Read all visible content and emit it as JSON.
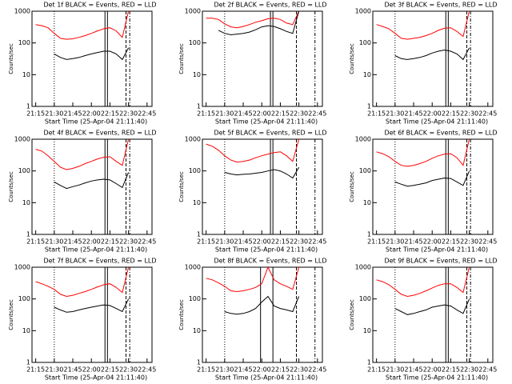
{
  "chart_data": [
    {
      "type": "line",
      "title": "Det 1f BLACK = Events, RED = LLD",
      "xlabel": "Start Time (25-Apr-04 21:11:40)",
      "ylabel": "Counts/sec",
      "log": true,
      "x": [
        "21:15",
        "21:20",
        "21:25",
        "21:30",
        "21:35",
        "21:40",
        "21:45",
        "21:50",
        "21:55",
        "22:00",
        "22:05",
        "22:10",
        "22:15",
        "22:20",
        "22:25",
        "22:30"
      ],
      "xlim": [
        "21:12",
        "22:49"
      ],
      "xticks": [
        "21:15",
        "21:30",
        "21:45",
        "22:00",
        "22:15",
        "22:30",
        "22:45"
      ],
      "ylim": [
        1,
        1000
      ],
      "yticks": [
        1,
        10,
        100,
        1000
      ],
      "vlines": [
        {
          "x": "21:30",
          "style": "dotted"
        },
        {
          "x": "22:11",
          "style": "solid"
        },
        {
          "x": "22:13",
          "style": "solid"
        },
        {
          "x": "22:28",
          "style": "dashed"
        },
        {
          "x": "22:31",
          "style": "dashdot"
        }
      ],
      "series": [
        {
          "color": "#ff0000",
          "values": [
            380,
            350,
            300,
            200,
            140,
            130,
            135,
            150,
            170,
            200,
            240,
            280,
            300,
            240,
            150,
            1000
          ]
        },
        {
          "color": "#000000",
          "values": [
            null,
            null,
            null,
            45,
            35,
            30,
            32,
            35,
            40,
            45,
            50,
            55,
            55,
            45,
            30,
            70
          ]
        }
      ]
    },
    {
      "type": "line",
      "title": "Det 2f BLACK = Events, RED = LLD",
      "xlabel": "Start Time (25-Apr-04 21:11:40)",
      "ylabel": "Counts/sec",
      "log": true,
      "x": [
        "21:15",
        "21:20",
        "21:25",
        "21:30",
        "21:35",
        "21:40",
        "21:45",
        "21:50",
        "21:55",
        "22:00",
        "22:05",
        "22:10",
        "22:15",
        "22:20",
        "22:25",
        "22:30"
      ],
      "xlim": [
        "21:12",
        "22:49"
      ],
      "xticks": [
        "21:15",
        "21:30",
        "21:45",
        "22:00",
        "22:15",
        "22:30",
        "22:45"
      ],
      "ylim": [
        1,
        1000
      ],
      "yticks": [
        1,
        10,
        100,
        1000
      ],
      "vlines": [
        {
          "x": "21:30",
          "style": "dotted"
        },
        {
          "x": "22:07",
          "style": "solid"
        },
        {
          "x": "22:09",
          "style": "solid"
        },
        {
          "x": "22:28",
          "style": "dashed"
        },
        {
          "x": "22:43",
          "style": "dashdot"
        }
      ],
      "series": [
        {
          "color": "#ff0000",
          "values": [
            600,
            600,
            550,
            400,
            320,
            300,
            330,
            380,
            450,
            500,
            580,
            600,
            550,
            420,
            380,
            1000
          ]
        },
        {
          "color": "#000000",
          "values": [
            null,
            null,
            250,
            200,
            180,
            190,
            200,
            220,
            260,
            320,
            350,
            330,
            280,
            230,
            200,
            1000
          ]
        }
      ]
    },
    {
      "type": "line",
      "title": "Det 3f BLACK = Events, RED = LLD",
      "xlabel": "Start Time (25-Apr-04 21:11:40)",
      "ylabel": "Counts/sec",
      "log": true,
      "x": [
        "21:15",
        "21:20",
        "21:25",
        "21:30",
        "21:35",
        "21:40",
        "21:45",
        "21:50",
        "21:55",
        "22:00",
        "22:05",
        "22:10",
        "22:15",
        "22:20",
        "22:25",
        "22:30"
      ],
      "xlim": [
        "21:12",
        "22:49"
      ],
      "xticks": [
        "21:15",
        "21:30",
        "21:45",
        "22:00",
        "22:15",
        "22:30",
        "22:45"
      ],
      "ylim": [
        1,
        1000
      ],
      "yticks": [
        1,
        10,
        100,
        1000
      ],
      "vlines": [
        {
          "x": "21:30",
          "style": "dotted"
        },
        {
          "x": "22:11",
          "style": "solid"
        },
        {
          "x": "22:13",
          "style": "solid"
        },
        {
          "x": "22:28",
          "style": "dashed"
        },
        {
          "x": "22:31",
          "style": "dashdot"
        }
      ],
      "series": [
        {
          "color": "#ff0000",
          "values": [
            380,
            330,
            280,
            200,
            140,
            130,
            140,
            150,
            170,
            200,
            250,
            290,
            300,
            230,
            160,
            1000
          ]
        },
        {
          "color": "#000000",
          "values": [
            null,
            null,
            null,
            40,
            32,
            30,
            32,
            35,
            40,
            48,
            55,
            60,
            55,
            45,
            30,
            70
          ]
        }
      ]
    },
    {
      "type": "line",
      "title": "Det 4f BLACK = Events, RED = LLD",
      "xlabel": "Start Time (25-Apr-04 21:11:40)",
      "ylabel": "Counts/sec",
      "log": true,
      "x": [
        "21:15",
        "21:20",
        "21:25",
        "21:30",
        "21:35",
        "21:40",
        "21:45",
        "21:50",
        "21:55",
        "22:00",
        "22:05",
        "22:10",
        "22:15",
        "22:20",
        "22:25",
        "22:30"
      ],
      "xlim": [
        "21:12",
        "22:49"
      ],
      "xticks": [
        "21:15",
        "21:30",
        "21:45",
        "22:00",
        "22:15",
        "22:30",
        "22:45"
      ],
      "ylim": [
        1,
        1000
      ],
      "yticks": [
        1,
        10,
        100,
        1000
      ],
      "vlines": [
        {
          "x": "21:30",
          "style": "dotted"
        },
        {
          "x": "22:11",
          "style": "solid"
        },
        {
          "x": "22:13",
          "style": "solid"
        },
        {
          "x": "22:28",
          "style": "dashed"
        },
        {
          "x": "22:31",
          "style": "dashdot"
        }
      ],
      "series": [
        {
          "color": "#ff0000",
          "values": [
            480,
            420,
            300,
            200,
            130,
            110,
            120,
            140,
            170,
            200,
            240,
            270,
            280,
            200,
            150,
            1000
          ]
        },
        {
          "color": "#000000",
          "values": [
            null,
            null,
            null,
            45,
            35,
            28,
            32,
            36,
            42,
            48,
            52,
            55,
            52,
            40,
            30,
            90
          ]
        }
      ]
    },
    {
      "type": "line",
      "title": "Det 5f BLACK = Events, RED = LLD",
      "xlabel": "Start Time (25-Apr-04 21:11:40)",
      "ylabel": "Counts/sec",
      "log": true,
      "x": [
        "21:15",
        "21:20",
        "21:25",
        "21:30",
        "21:35",
        "21:40",
        "21:45",
        "21:50",
        "21:55",
        "22:00",
        "22:05",
        "22:10",
        "22:15",
        "22:20",
        "22:25",
        "22:30"
      ],
      "xlim": [
        "21:12",
        "22:49"
      ],
      "xticks": [
        "21:15",
        "21:30",
        "21:45",
        "22:00",
        "22:15",
        "22:30",
        "22:45"
      ],
      "ylim": [
        1,
        1000
      ],
      "yticks": [
        1,
        10,
        100,
        1000
      ],
      "vlines": [
        {
          "x": "21:30",
          "style": "dotted"
        },
        {
          "x": "22:07",
          "style": "solid"
        },
        {
          "x": "22:09",
          "style": "solid"
        },
        {
          "x": "22:28",
          "style": "dashed"
        },
        {
          "x": "22:43",
          "style": "dashdot"
        }
      ],
      "series": [
        {
          "color": "#ff0000",
          "values": [
            700,
            600,
            450,
            300,
            220,
            190,
            200,
            220,
            260,
            300,
            340,
            380,
            400,
            300,
            200,
            1000
          ]
        },
        {
          "color": "#000000",
          "values": [
            null,
            null,
            null,
            90,
            80,
            75,
            78,
            80,
            85,
            90,
            100,
            110,
            100,
            80,
            60,
            130
          ]
        }
      ]
    },
    {
      "type": "line",
      "title": "Det 6f BLACK = Events, RED = LLD",
      "xlabel": "Start Time (25-Apr-04 21:11:40)",
      "ylabel": "Counts/sec",
      "log": true,
      "x": [
        "21:15",
        "21:20",
        "21:25",
        "21:30",
        "21:35",
        "21:40",
        "21:45",
        "21:50",
        "21:55",
        "22:00",
        "22:05",
        "22:10",
        "22:15",
        "22:20",
        "22:25",
        "22:30"
      ],
      "xlim": [
        "21:12",
        "22:49"
      ],
      "xticks": [
        "21:15",
        "21:30",
        "21:45",
        "22:00",
        "22:15",
        "22:30",
        "22:45"
      ],
      "ylim": [
        1,
        1000
      ],
      "yticks": [
        1,
        10,
        100,
        1000
      ],
      "vlines": [
        {
          "x": "21:30",
          "style": "dotted"
        },
        {
          "x": "22:11",
          "style": "solid"
        },
        {
          "x": "22:13",
          "style": "solid"
        },
        {
          "x": "22:28",
          "style": "dashed"
        },
        {
          "x": "22:31",
          "style": "dashdot"
        }
      ],
      "series": [
        {
          "color": "#ff0000",
          "values": [
            400,
            350,
            280,
            200,
            150,
            140,
            150,
            170,
            200,
            250,
            300,
            340,
            350,
            260,
            150,
            1000
          ]
        },
        {
          "color": "#000000",
          "values": [
            null,
            null,
            null,
            45,
            38,
            33,
            35,
            38,
            42,
            50,
            55,
            60,
            58,
            45,
            35,
            100
          ]
        }
      ]
    },
    {
      "type": "line",
      "title": "Det 7f BLACK = Events, RED = LLD",
      "xlabel": "Start Time (25-Apr-04 21:11:40)",
      "ylabel": "Counts/sec",
      "log": true,
      "x": [
        "21:15",
        "21:20",
        "21:25",
        "21:30",
        "21:35",
        "21:40",
        "21:45",
        "21:50",
        "21:55",
        "22:00",
        "22:05",
        "22:10",
        "22:15",
        "22:20",
        "22:25",
        "22:30"
      ],
      "xlim": [
        "21:12",
        "22:49"
      ],
      "xticks": [
        "21:15",
        "21:30",
        "21:45",
        "22:00",
        "22:15",
        "22:30",
        "22:45"
      ],
      "ylim": [
        1,
        1000
      ],
      "yticks": [
        1,
        10,
        100,
        1000
      ],
      "vlines": [
        {
          "x": "21:30",
          "style": "dotted"
        },
        {
          "x": "22:11",
          "style": "solid"
        },
        {
          "x": "22:13",
          "style": "solid"
        },
        {
          "x": "22:28",
          "style": "dashed"
        },
        {
          "x": "22:31",
          "style": "dashdot"
        }
      ],
      "series": [
        {
          "color": "#ff0000",
          "values": [
            350,
            300,
            250,
            200,
            140,
            120,
            130,
            150,
            170,
            200,
            240,
            280,
            300,
            230,
            160,
            1000
          ]
        },
        {
          "color": "#000000",
          "values": [
            null,
            null,
            null,
            55,
            45,
            38,
            40,
            45,
            50,
            55,
            60,
            65,
            62,
            50,
            40,
            100
          ]
        }
      ]
    },
    {
      "type": "line",
      "title": "Det 8f BLACK = Events, RED = LLD",
      "xlabel": "Start Time (25-Apr-04 21:11:40)",
      "ylabel": "Counts/sec",
      "log": true,
      "x": [
        "21:15",
        "21:20",
        "21:25",
        "21:30",
        "21:35",
        "21:40",
        "21:45",
        "21:50",
        "21:55",
        "22:00",
        "22:05",
        "22:10",
        "22:15",
        "22:20",
        "22:25",
        "22:30"
      ],
      "xlim": [
        "21:12",
        "22:49"
      ],
      "xticks": [
        "21:15",
        "21:30",
        "21:45",
        "22:00",
        "22:15",
        "22:30",
        "22:45"
      ],
      "ylim": [
        1,
        1000
      ],
      "yticks": [
        1,
        10,
        100,
        1000
      ],
      "vlines": [
        {
          "x": "21:30",
          "style": "dotted"
        },
        {
          "x": "21:59",
          "style": "solid"
        },
        {
          "x": "22:09",
          "style": "solid"
        },
        {
          "x": "22:28",
          "style": "dashed"
        },
        {
          "x": "22:43",
          "style": "dashdot"
        }
      ],
      "series": [
        {
          "color": "#ff0000",
          "values": [
            450,
            400,
            320,
            250,
            180,
            170,
            180,
            200,
            230,
            300,
            1000,
            400,
            300,
            250,
            200,
            1000
          ]
        },
        {
          "color": "#000000",
          "values": [
            null,
            null,
            null,
            40,
            35,
            33,
            35,
            40,
            50,
            80,
            120,
            60,
            50,
            45,
            40,
            120
          ]
        }
      ]
    },
    {
      "type": "line",
      "title": "Det 9f BLACK = Events, RED = LLD",
      "xlabel": "Start Time (25-Apr-04 21:11:40)",
      "ylabel": "Counts/sec",
      "log": true,
      "x": [
        "21:15",
        "21:20",
        "21:25",
        "21:30",
        "21:35",
        "21:40",
        "21:45",
        "21:50",
        "21:55",
        "22:00",
        "22:05",
        "22:10",
        "22:15",
        "22:20",
        "22:25",
        "22:30"
      ],
      "xlim": [
        "21:12",
        "22:49"
      ],
      "xticks": [
        "21:15",
        "21:30",
        "21:45",
        "22:00",
        "22:15",
        "22:30",
        "22:45"
      ],
      "ylim": [
        1,
        1000
      ],
      "yticks": [
        1,
        10,
        100,
        1000
      ],
      "vlines": [
        {
          "x": "21:30",
          "style": "dotted"
        },
        {
          "x": "22:11",
          "style": "solid"
        },
        {
          "x": "22:13",
          "style": "solid"
        },
        {
          "x": "22:28",
          "style": "dashed"
        },
        {
          "x": "22:31",
          "style": "dashdot"
        }
      ],
      "series": [
        {
          "color": "#ff0000",
          "values": [
            400,
            350,
            280,
            200,
            140,
            120,
            130,
            150,
            180,
            220,
            270,
            300,
            300,
            230,
            160,
            1000
          ]
        },
        {
          "color": "#000000",
          "values": [
            null,
            null,
            null,
            50,
            40,
            32,
            35,
            40,
            45,
            55,
            60,
            65,
            60,
            45,
            35,
            100
          ]
        }
      ]
    }
  ]
}
